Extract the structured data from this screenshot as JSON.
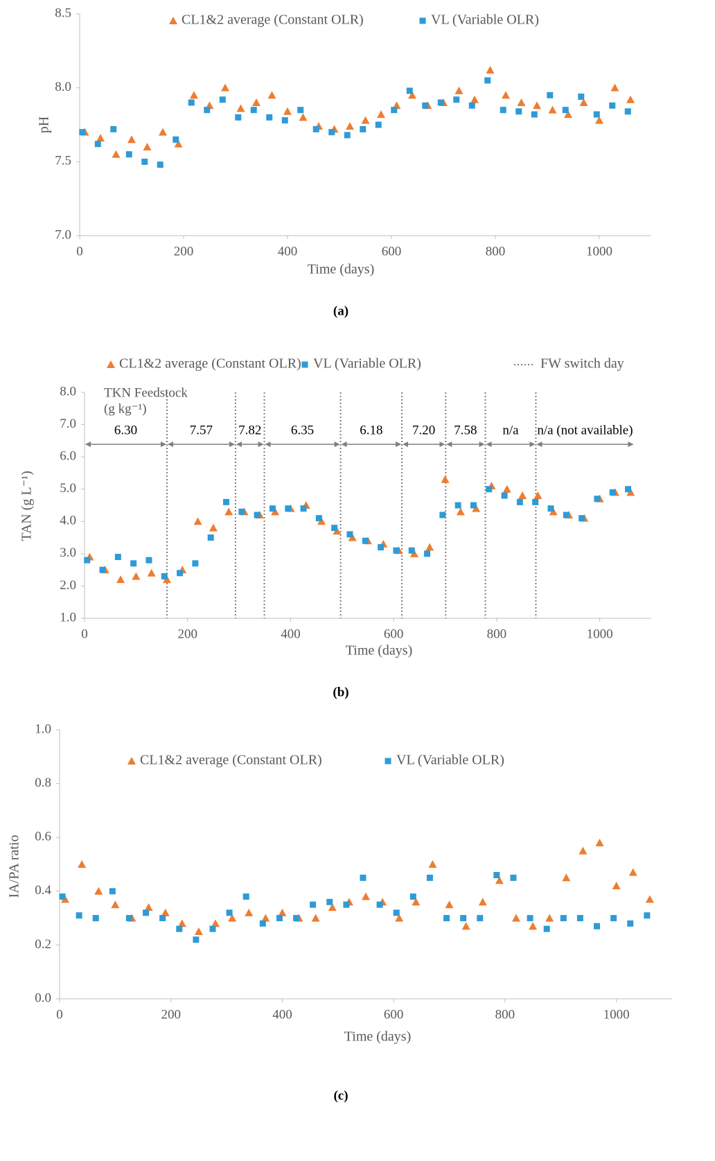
{
  "chart_data": [
    {
      "type": "scatter",
      "panel_label": "(a)",
      "x_label": "Time (days)",
      "y_label": "pH",
      "xlim": [
        0,
        1100
      ],
      "xticks": [
        0,
        200,
        400,
        600,
        800,
        1000
      ],
      "ylim": [
        7,
        8.5
      ],
      "yticks": [
        {
          "value": 7,
          "label": "7.0"
        },
        7.5,
        {
          "value": 8,
          "label": "8.0"
        },
        8.5
      ],
      "series": [
        {
          "name": "CL1&2 average (Constant OLR)",
          "color": "#ED7D31",
          "marker": "triangle",
          "x": [
            10,
            40,
            70,
            100,
            130,
            160,
            190,
            220,
            250,
            280,
            310,
            340,
            370,
            400,
            430,
            460,
            490,
            520,
            550,
            580,
            610,
            640,
            670,
            700,
            730,
            760,
            790,
            820,
            850,
            880,
            910,
            940,
            970,
            1000,
            1030,
            1060
          ],
          "values": [
            7.7,
            7.66,
            7.55,
            7.65,
            7.6,
            7.7,
            7.62,
            7.95,
            7.88,
            8.0,
            7.86,
            7.9,
            7.95,
            7.84,
            7.8,
            7.74,
            7.72,
            7.74,
            7.78,
            7.82,
            7.88,
            7.95,
            7.88,
            7.9,
            7.98,
            7.92,
            8.12,
            7.95,
            7.9,
            7.88,
            7.85,
            7.82,
            7.9,
            7.78,
            8.0,
            7.92
          ]
        },
        {
          "name": "VL (Variable OLR)",
          "color": "#2E9BD6",
          "marker": "square",
          "x": [
            5,
            35,
            65,
            95,
            125,
            155,
            185,
            215,
            245,
            275,
            305,
            335,
            365,
            395,
            425,
            455,
            485,
            515,
            545,
            575,
            605,
            635,
            665,
            695,
            725,
            755,
            785,
            815,
            845,
            875,
            905,
            935,
            965,
            995,
            1025,
            1055
          ],
          "values": [
            7.7,
            7.62,
            7.72,
            7.55,
            7.5,
            7.48,
            7.65,
            7.9,
            7.85,
            7.92,
            7.8,
            7.85,
            7.8,
            7.78,
            7.85,
            7.72,
            7.7,
            7.68,
            7.72,
            7.75,
            7.85,
            7.98,
            7.88,
            7.9,
            7.92,
            7.88,
            8.05,
            7.85,
            7.84,
            7.82,
            7.95,
            7.85,
            7.94,
            7.82,
            7.88,
            7.84
          ]
        }
      ]
    },
    {
      "type": "scatter",
      "panel_label": "(b)",
      "x_label": "Time (days)",
      "y_label": "TAN (g L⁻¹)",
      "xlim": [
        0,
        1100
      ],
      "xticks": [
        0,
        200,
        400,
        600,
        800,
        1000
      ],
      "ylim": [
        1,
        8
      ],
      "yticks": [
        {
          "value": 1,
          "label": "1.0"
        },
        {
          "value": 2,
          "label": "2.0"
        },
        {
          "value": 3,
          "label": "3.0"
        },
        {
          "value": 4,
          "label": "4.0"
        },
        {
          "value": 5,
          "label": "5.0"
        },
        {
          "value": 6,
          "label": "6.0"
        },
        {
          "value": 7,
          "label": "7.0"
        },
        {
          "value": 8,
          "label": "8.0"
        }
      ],
      "series": [
        {
          "name": "CL1&2 average (Constant OLR)",
          "color": "#ED7D31",
          "marker": "triangle",
          "x": [
            10,
            40,
            70,
            100,
            130,
            160,
            190,
            220,
            250,
            280,
            310,
            340,
            370,
            400,
            430,
            460,
            490,
            520,
            550,
            580,
            610,
            640,
            670,
            700,
            730,
            760,
            790,
            820,
            850,
            880,
            910,
            940,
            970,
            1000,
            1030,
            1060
          ],
          "values": [
            2.9,
            2.5,
            2.2,
            2.3,
            2.4,
            2.2,
            2.5,
            4.0,
            3.8,
            4.3,
            4.3,
            4.2,
            4.3,
            4.4,
            4.5,
            4.0,
            3.7,
            3.5,
            3.4,
            3.3,
            3.1,
            3.0,
            3.2,
            5.3,
            4.3,
            4.4,
            5.1,
            5.0,
            4.8,
            4.8,
            4.3,
            4.2,
            4.1,
            4.7,
            4.9,
            4.9
          ]
        },
        {
          "name": "VL (Variable OLR)",
          "color": "#2E9BD6",
          "marker": "square",
          "x": [
            5,
            35,
            65,
            95,
            125,
            155,
            185,
            215,
            245,
            275,
            305,
            335,
            365,
            395,
            425,
            455,
            485,
            515,
            545,
            575,
            605,
            635,
            665,
            695,
            725,
            755,
            785,
            815,
            845,
            875,
            905,
            935,
            965,
            995,
            1025,
            1055
          ],
          "values": [
            2.8,
            2.5,
            2.9,
            2.7,
            2.8,
            2.3,
            2.4,
            2.7,
            3.5,
            4.6,
            4.3,
            4.2,
            4.4,
            4.4,
            4.4,
            4.1,
            3.8,
            3.6,
            3.4,
            3.2,
            3.1,
            3.1,
            3.0,
            4.2,
            4.5,
            4.5,
            5.0,
            4.8,
            4.6,
            4.6,
            4.4,
            4.2,
            4.1,
            4.7,
            4.9,
            5.0
          ]
        }
      ],
      "switch_name": "FW switch day",
      "switch_days": [
        160,
        293,
        349,
        497,
        616,
        701,
        778,
        876
      ],
      "feedstock": {
        "title": "TKN  Feedstock",
        "unit": "(g kg⁻¹)",
        "periods": [
          {
            "label": "6.30",
            "start": 0,
            "end": 160
          },
          {
            "label": "7.57",
            "start": 160,
            "end": 293
          },
          {
            "label": "7.82",
            "start": 293,
            "end": 349
          },
          {
            "label": "6.35",
            "start": 349,
            "end": 497
          },
          {
            "label": "6.18",
            "start": 497,
            "end": 616
          },
          {
            "label": "7.20",
            "start": 616,
            "end": 701
          },
          {
            "label": "7.58",
            "start": 701,
            "end": 778
          },
          {
            "label": "n/a",
            "start": 778,
            "end": 876
          },
          {
            "label": "n/a (not available)",
            "start": 876,
            "end": 1067
          }
        ]
      }
    },
    {
      "type": "scatter",
      "panel_label": "(c)",
      "x_label": "Time (days)",
      "y_label": "IA/PA ratio",
      "xlim": [
        0,
        1100
      ],
      "xticks": [
        0,
        200,
        400,
        600,
        800,
        1000
      ],
      "ylim": [
        0,
        1
      ],
      "yticks": [
        {
          "value": 0,
          "label": "0.0"
        },
        0.2,
        0.4,
        0.6,
        0.8,
        {
          "value": 1,
          "label": "1.0"
        }
      ],
      "series": [
        {
          "name": "CL1&2 average (Constant OLR)",
          "color": "#ED7D31",
          "marker": "triangle",
          "x": [
            10,
            40,
            70,
            100,
            130,
            160,
            190,
            220,
            250,
            280,
            310,
            340,
            370,
            400,
            430,
            460,
            490,
            520,
            550,
            580,
            610,
            640,
            670,
            700,
            730,
            760,
            790,
            820,
            850,
            880,
            910,
            940,
            970,
            1000,
            1030,
            1060
          ],
          "values": [
            0.37,
            0.5,
            0.4,
            0.35,
            0.3,
            0.34,
            0.32,
            0.28,
            0.25,
            0.28,
            0.3,
            0.32,
            0.3,
            0.32,
            0.3,
            0.3,
            0.34,
            0.36,
            0.38,
            0.36,
            0.3,
            0.36,
            0.5,
            0.35,
            0.27,
            0.36,
            0.44,
            0.3,
            0.27,
            0.3,
            0.45,
            0.55,
            0.58,
            0.42,
            0.47,
            0.37
          ]
        },
        {
          "name": "VL (Variable OLR)",
          "color": "#2E9BD6",
          "marker": "square",
          "x": [
            5,
            35,
            65,
            95,
            125,
            155,
            185,
            215,
            245,
            275,
            305,
            335,
            365,
            395,
            425,
            455,
            485,
            515,
            545,
            575,
            605,
            635,
            665,
            695,
            725,
            755,
            785,
            815,
            845,
            875,
            905,
            935,
            965,
            995,
            1025,
            1055
          ],
          "values": [
            0.38,
            0.31,
            0.3,
            0.4,
            0.3,
            0.32,
            0.3,
            0.26,
            0.22,
            0.26,
            0.32,
            0.38,
            0.28,
            0.3,
            0.3,
            0.35,
            0.36,
            0.35,
            0.45,
            0.35,
            0.32,
            0.38,
            0.45,
            0.3,
            0.3,
            0.3,
            0.46,
            0.45,
            0.3,
            0.26,
            0.3,
            0.3,
            0.27,
            0.3,
            0.28,
            0.31
          ]
        }
      ]
    }
  ]
}
